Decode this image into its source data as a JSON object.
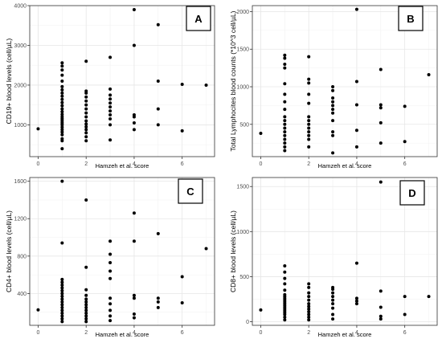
{
  "chart_data": [
    {
      "type": "scatter",
      "panel_label": "A",
      "xlabel": "Hamzeh et al. score",
      "ylabel": "CD19+ blood levels (cell/µL)",
      "xlim": [
        -0.35,
        7.35
      ],
      "ylim": [
        200,
        4000
      ],
      "xticks": [
        0,
        2,
        4,
        6
      ],
      "yticks": [
        1000,
        2000,
        3000,
        4000
      ],
      "grid": true,
      "points": [
        [
          0,
          900
        ],
        [
          1,
          400
        ],
        [
          1,
          600
        ],
        [
          1,
          650
        ],
        [
          1,
          750
        ],
        [
          1,
          820
        ],
        [
          1,
          880
        ],
        [
          1,
          940
        ],
        [
          1,
          1000
        ],
        [
          1,
          1050
        ],
        [
          1,
          1100
        ],
        [
          1,
          1150
        ],
        [
          1,
          1200
        ],
        [
          1,
          1260
        ],
        [
          1,
          1330
        ],
        [
          1,
          1400
        ],
        [
          1,
          1480
        ],
        [
          1,
          1560
        ],
        [
          1,
          1640
        ],
        [
          1,
          1720
        ],
        [
          1,
          1800
        ],
        [
          1,
          1880
        ],
        [
          1,
          1960
        ],
        [
          1,
          2100
        ],
        [
          1,
          2250
        ],
        [
          1,
          2380
        ],
        [
          1,
          2480
        ],
        [
          1,
          2560
        ],
        [
          2,
          600
        ],
        [
          2,
          700
        ],
        [
          2,
          800
        ],
        [
          2,
          880
        ],
        [
          2,
          950
        ],
        [
          2,
          1020
        ],
        [
          2,
          1100
        ],
        [
          2,
          1200
        ],
        [
          2,
          1300
        ],
        [
          2,
          1400
        ],
        [
          2,
          1500
        ],
        [
          2,
          1600
        ],
        [
          2,
          1700
        ],
        [
          2,
          1800
        ],
        [
          2,
          1850
        ],
        [
          2,
          2600
        ],
        [
          3,
          620
        ],
        [
          3,
          1000
        ],
        [
          3,
          1150
        ],
        [
          3,
          1250
        ],
        [
          3,
          1350
        ],
        [
          3,
          1450
        ],
        [
          3,
          1550
        ],
        [
          3,
          1650
        ],
        [
          3,
          1750
        ],
        [
          3,
          1900
        ],
        [
          3,
          2700
        ],
        [
          4,
          880
        ],
        [
          4,
          1050
        ],
        [
          4,
          1200
        ],
        [
          4,
          1250
        ],
        [
          4,
          3000
        ],
        [
          4,
          3900
        ],
        [
          5,
          1000
        ],
        [
          5,
          1400
        ],
        [
          5,
          2100
        ],
        [
          5,
          3520
        ],
        [
          6,
          850
        ],
        [
          6,
          2020
        ],
        [
          7,
          2000
        ]
      ]
    },
    {
      "type": "scatter",
      "panel_label": "B",
      "xlabel": "Hamzeh et al. score",
      "ylabel": "Total Lymphocites blood counts (*10^3 cell/µL)",
      "xlim": [
        -0.35,
        7.35
      ],
      "ylim": [
        70,
        2080
      ],
      "xticks": [
        0,
        2,
        4,
        6
      ],
      "yticks": [
        500,
        1000,
        1500,
        2000
      ],
      "grid": true,
      "points": [
        [
          0,
          380
        ],
        [
          1,
          150
        ],
        [
          1,
          200
        ],
        [
          1,
          250
        ],
        [
          1,
          300
        ],
        [
          1,
          350
        ],
        [
          1,
          400
        ],
        [
          1,
          450
        ],
        [
          1,
          500
        ],
        [
          1,
          550
        ],
        [
          1,
          600
        ],
        [
          1,
          700
        ],
        [
          1,
          800
        ],
        [
          1,
          900
        ],
        [
          1,
          1040
        ],
        [
          1,
          1250
        ],
        [
          1,
          1300
        ],
        [
          1,
          1380
        ],
        [
          1,
          1420
        ],
        [
          2,
          200
        ],
        [
          2,
          300
        ],
        [
          2,
          350
        ],
        [
          2,
          400
        ],
        [
          2,
          450
        ],
        [
          2,
          500
        ],
        [
          2,
          550
        ],
        [
          2,
          600
        ],
        [
          2,
          780
        ],
        [
          2,
          900
        ],
        [
          2,
          1050
        ],
        [
          2,
          1100
        ],
        [
          2,
          1400
        ],
        [
          3,
          120
        ],
        [
          3,
          350
        ],
        [
          3,
          400
        ],
        [
          3,
          550
        ],
        [
          3,
          650
        ],
        [
          3,
          700
        ],
        [
          3,
          750
        ],
        [
          3,
          800
        ],
        [
          3,
          850
        ],
        [
          3,
          950
        ],
        [
          3,
          1000
        ],
        [
          4,
          200
        ],
        [
          4,
          420
        ],
        [
          4,
          760
        ],
        [
          4,
          1070
        ],
        [
          4,
          2030
        ],
        [
          5,
          250
        ],
        [
          5,
          520
        ],
        [
          5,
          720
        ],
        [
          5,
          760
        ],
        [
          5,
          1230
        ],
        [
          6,
          270
        ],
        [
          6,
          740
        ],
        [
          7,
          1160
        ]
      ]
    },
    {
      "type": "scatter",
      "panel_label": "C",
      "xlabel": "Hamzeh et al. score",
      "ylabel": "CD4+ blood levels (cell/µL)",
      "xlim": [
        -0.35,
        7.35
      ],
      "ylim": [
        60,
        1640
      ],
      "xticks": [
        0,
        2,
        4,
        6
      ],
      "yticks": [
        400,
        800,
        1200,
        1600
      ],
      "grid": true,
      "points": [
        [
          0,
          225
        ],
        [
          1,
          100
        ],
        [
          1,
          130
        ],
        [
          1,
          160
        ],
        [
          1,
          190
        ],
        [
          1,
          220
        ],
        [
          1,
          250
        ],
        [
          1,
          280
        ],
        [
          1,
          310
        ],
        [
          1,
          340
        ],
        [
          1,
          370
        ],
        [
          1,
          400
        ],
        [
          1,
          430
        ],
        [
          1,
          460
        ],
        [
          1,
          490
        ],
        [
          1,
          520
        ],
        [
          1,
          550
        ],
        [
          1,
          940
        ],
        [
          1,
          1600
        ],
        [
          2,
          100
        ],
        [
          2,
          130
        ],
        [
          2,
          160
        ],
        [
          2,
          190
        ],
        [
          2,
          220
        ],
        [
          2,
          250
        ],
        [
          2,
          280
        ],
        [
          2,
          310
        ],
        [
          2,
          340
        ],
        [
          2,
          380
        ],
        [
          2,
          440
        ],
        [
          2,
          680
        ],
        [
          2,
          1400
        ],
        [
          3,
          110
        ],
        [
          3,
          160
        ],
        [
          3,
          220
        ],
        [
          3,
          290
        ],
        [
          3,
          350
        ],
        [
          3,
          560
        ],
        [
          3,
          640
        ],
        [
          3,
          730
        ],
        [
          3,
          820
        ],
        [
          3,
          960
        ],
        [
          4,
          140
        ],
        [
          4,
          180
        ],
        [
          4,
          350
        ],
        [
          4,
          380
        ],
        [
          4,
          960
        ],
        [
          4,
          1260
        ],
        [
          5,
          250
        ],
        [
          5,
          310
        ],
        [
          5,
          350
        ],
        [
          5,
          1040
        ],
        [
          6,
          300
        ],
        [
          6,
          580
        ],
        [
          7,
          880
        ]
      ]
    },
    {
      "type": "scatter",
      "panel_label": "D",
      "xlabel": "Hamzeh et al. score",
      "ylabel": "CD8+ blood levels (cell/µL)",
      "xlim": [
        -0.35,
        7.35
      ],
      "ylim": [
        -40,
        1600
      ],
      "xticks": [
        0,
        2,
        4,
        6
      ],
      "yticks": [
        0,
        500,
        1000,
        1500
      ],
      "grid": true,
      "points": [
        [
          0,
          130
        ],
        [
          1,
          20
        ],
        [
          1,
          50
        ],
        [
          1,
          80
        ],
        [
          1,
          100
        ],
        [
          1,
          120
        ],
        [
          1,
          140
        ],
        [
          1,
          160
        ],
        [
          1,
          180
        ],
        [
          1,
          200
        ],
        [
          1,
          220
        ],
        [
          1,
          240
        ],
        [
          1,
          260
        ],
        [
          1,
          280
        ],
        [
          1,
          300
        ],
        [
          1,
          350
        ],
        [
          1,
          420
        ],
        [
          1,
          480
        ],
        [
          1,
          550
        ],
        [
          1,
          620
        ],
        [
          2,
          20
        ],
        [
          2,
          50
        ],
        [
          2,
          80
        ],
        [
          2,
          110
        ],
        [
          2,
          140
        ],
        [
          2,
          170
        ],
        [
          2,
          200
        ],
        [
          2,
          240
        ],
        [
          2,
          280
        ],
        [
          2,
          320
        ],
        [
          2,
          380
        ],
        [
          2,
          420
        ],
        [
          3,
          30
        ],
        [
          3,
          80
        ],
        [
          3,
          150
        ],
        [
          3,
          200
        ],
        [
          3,
          240
        ],
        [
          3,
          280
        ],
        [
          3,
          320
        ],
        [
          3,
          360
        ],
        [
          3,
          380
        ],
        [
          4,
          200
        ],
        [
          4,
          230
        ],
        [
          4,
          260
        ],
        [
          4,
          650
        ],
        [
          5,
          30
        ],
        [
          5,
          60
        ],
        [
          5,
          160
        ],
        [
          5,
          340
        ],
        [
          5,
          1550
        ],
        [
          6,
          80
        ],
        [
          6,
          280
        ],
        [
          7,
          280
        ]
      ]
    }
  ]
}
